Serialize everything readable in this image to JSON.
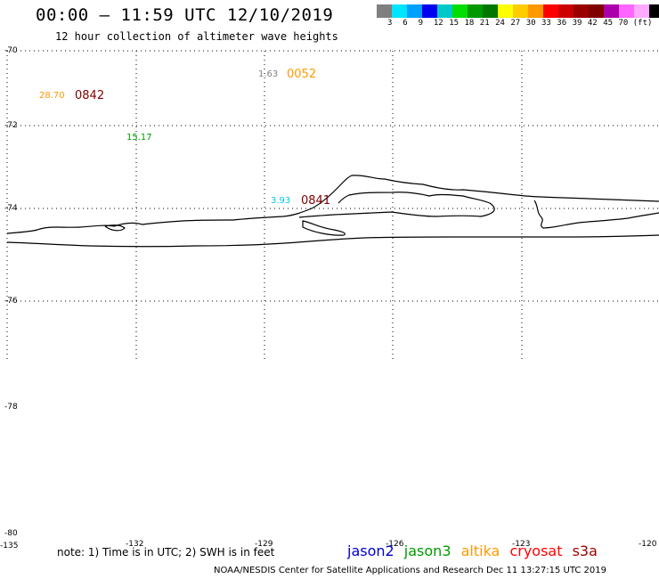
{
  "title": "00:00 – 11:59 UTC 12/10/2019",
  "subtitle": "12 hour collection of altimeter wave heights",
  "colorbar": {
    "colors": [
      "#7f7f7f",
      "#00e5ff",
      "#00a0ff",
      "#0000ee",
      "#00c8c8",
      "#00dd00",
      "#009900",
      "#007700",
      "#ffff00",
      "#ffcc00",
      "#ff9900",
      "#ff0000",
      "#cc0000",
      "#990000",
      "#800000",
      "#aa00aa",
      "#ff66ff",
      "#ffaaff",
      "#000000"
    ],
    "labels": [
      "3",
      "6",
      "9",
      "12",
      "15",
      "18",
      "21",
      "24",
      "27",
      "30",
      "33",
      "36",
      "39",
      "42",
      "45",
      "70 (ft)"
    ]
  },
  "lat_labels": [
    "-70",
    "-72",
    "-74",
    "-76",
    "-78",
    "-80"
  ],
  "lon_labels": [
    "-135",
    "-132",
    "-129",
    "-126",
    "-123",
    "-120"
  ],
  "annotations": [
    {
      "text": "1.63",
      "color": "#7f7f7f"
    },
    {
      "text": "0052",
      "color": "#ff9900"
    },
    {
      "text": "28.70",
      "color": "#ff9900"
    },
    {
      "text": "0842",
      "color": "#800000"
    },
    {
      "text": "15.17",
      "color": "#009900"
    },
    {
      "text": "3.93",
      "color": "#00c8e8"
    },
    {
      "text": "0841",
      "color": "#800000"
    }
  ],
  "note": "note: 1) Time is in UTC; 2) SWH is in feet",
  "satellites": [
    {
      "name": "jason2",
      "color": "#0000cc"
    },
    {
      "name": "jason3",
      "color": "#009900"
    },
    {
      "name": "altika",
      "color": "#ff9900"
    },
    {
      "name": "cryosat",
      "color": "#ff0000"
    },
    {
      "name": "s3a",
      "color": "#990000"
    }
  ],
  "credit": "NOAA/NESDIS Center for Satellite Applications and Research    Dec 11 13:27:15 UTC 2019"
}
